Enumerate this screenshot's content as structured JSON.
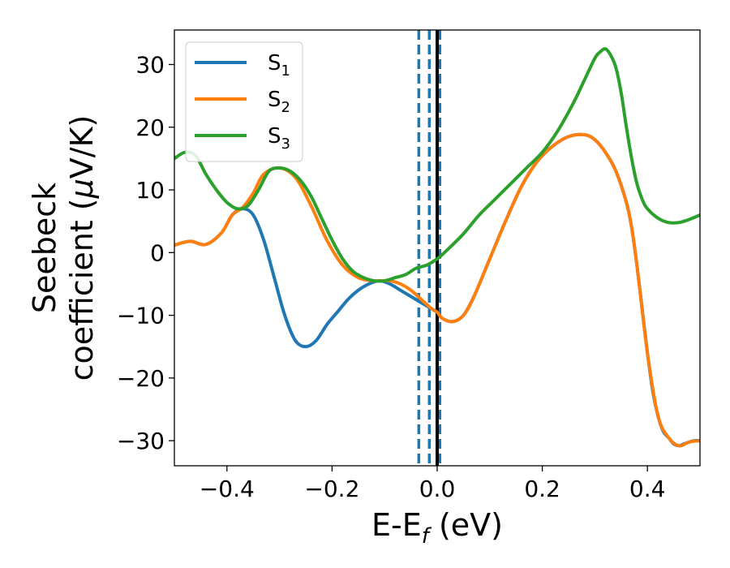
{
  "chart_data": {
    "type": "line",
    "xlabel": {
      "main": "E-E",
      "sub": "f",
      "unit": " (eV)"
    },
    "ylabel": {
      "line1": "Seebeck",
      "line2_prefix": "coefficient  (",
      "line2_mu": "μ",
      "line2_suffix": "V/K)"
    },
    "xlim": [
      -0.5,
      0.5
    ],
    "ylim": [
      -34,
      35.5
    ],
    "xticks": [
      -0.4,
      -0.2,
      0.0,
      0.2,
      0.4
    ],
    "xtick_labels": [
      "−0.4",
      "−0.2",
      "0.0",
      "0.2",
      "0.4"
    ],
    "yticks": [
      -30,
      -20,
      -10,
      0,
      10,
      20,
      30
    ],
    "ytick_labels": [
      "−30",
      "−20",
      "−10",
      "0",
      "10",
      "20",
      "30"
    ],
    "grid": false,
    "legend_position": "top-left",
    "vlines": [
      {
        "x": -0.035,
        "style": "dashed",
        "color": "#1f77b4"
      },
      {
        "x": -0.015,
        "style": "dashed",
        "color": "#1f77b4"
      },
      {
        "x": 0.005,
        "style": "dashed",
        "color": "#1f77b4"
      },
      {
        "x": 0.0,
        "style": "solid",
        "color": "#000000"
      }
    ],
    "series": [
      {
        "name": "S",
        "sub": "1",
        "color": "#1f77b4",
        "x": [
          -0.5,
          -0.47,
          -0.44,
          -0.41,
          -0.39,
          -0.37,
          -0.35,
          -0.33,
          -0.31,
          -0.29,
          -0.27,
          -0.25,
          -0.23,
          -0.21,
          -0.19,
          -0.17,
          -0.15,
          -0.13,
          -0.11,
          -0.09,
          -0.07,
          -0.05,
          -0.03,
          -0.01,
          0.0,
          0.01,
          0.03,
          0.05,
          0.07,
          0.1,
          0.13,
          0.16,
          0.19,
          0.22,
          0.25,
          0.28,
          0.3,
          0.32,
          0.34,
          0.36,
          0.37,
          0.38,
          0.39,
          0.4,
          0.41,
          0.42,
          0.43,
          0.44,
          0.45,
          0.46,
          0.47,
          0.48,
          0.49,
          0.5
        ],
        "y": [
          1.2,
          1.8,
          1.3,
          3.2,
          6.0,
          7.0,
          6.0,
          2.0,
          -4.0,
          -10.0,
          -14.0,
          -15.0,
          -14.0,
          -11.5,
          -9.5,
          -7.5,
          -6.0,
          -5.0,
          -4.5,
          -5.0,
          -6.0,
          -7.0,
          -8.0,
          -9.0,
          -9.5,
          -10.5,
          -11.0,
          -10.0,
          -7.0,
          -1.0,
          5.0,
          10.5,
          14.5,
          17.0,
          18.5,
          18.8,
          18.0,
          16.0,
          13.0,
          8.0,
          4.0,
          -2.0,
          -9.0,
          -16.0,
          -22.0,
          -26.0,
          -28.5,
          -29.5,
          -30.5,
          -30.8,
          -30.5,
          -30.2,
          -30.0,
          -30.0
        ]
      },
      {
        "name": "S",
        "sub": "2",
        "color": "#ff7f0e",
        "x": [
          -0.5,
          -0.47,
          -0.44,
          -0.41,
          -0.39,
          -0.37,
          -0.35,
          -0.33,
          -0.3,
          -0.27,
          -0.24,
          -0.21,
          -0.18,
          -0.15,
          -0.12,
          -0.09,
          -0.07,
          -0.05,
          -0.03,
          -0.01,
          0.0,
          0.01,
          0.03,
          0.05,
          0.07,
          0.1,
          0.13,
          0.16,
          0.19,
          0.22,
          0.25,
          0.28,
          0.3,
          0.32,
          0.34,
          0.36,
          0.37,
          0.38,
          0.4,
          0.42,
          0.44,
          0.46,
          0.48,
          0.5
        ],
        "y": [
          1.2,
          1.8,
          1.3,
          3.2,
          6.0,
          7.2,
          9.5,
          12.5,
          13.5,
          12.0,
          7.5,
          2.0,
          -2.0,
          -4.0,
          -4.5,
          -4.5,
          -5.0,
          -6.0,
          -7.5,
          -9.0,
          -9.5,
          -10.5,
          -11.0,
          -10.0,
          -7.0,
          -1.0,
          5.0,
          10.5,
          14.5,
          17.0,
          18.5,
          18.8,
          18.0,
          16.0,
          13.0,
          8.0,
          4.0,
          -2.0,
          -16.0,
          -26.0,
          -29.5,
          -30.8,
          -30.2,
          -30.0
        ]
      },
      {
        "name": "S",
        "sub": "3",
        "color": "#2ca02c",
        "x": [
          -0.5,
          -0.48,
          -0.46,
          -0.44,
          -0.42,
          -0.4,
          -0.38,
          -0.36,
          -0.34,
          -0.32,
          -0.3,
          -0.28,
          -0.26,
          -0.24,
          -0.22,
          -0.2,
          -0.18,
          -0.16,
          -0.14,
          -0.12,
          -0.1,
          -0.08,
          -0.06,
          -0.04,
          -0.02,
          0.0,
          0.02,
          0.05,
          0.08,
          0.11,
          0.14,
          0.17,
          0.2,
          0.23,
          0.26,
          0.28,
          0.3,
          0.31,
          0.32,
          0.33,
          0.34,
          0.35,
          0.36,
          0.37,
          0.38,
          0.39,
          0.4,
          0.42,
          0.44,
          0.46,
          0.48,
          0.5
        ],
        "y": [
          15.0,
          16.0,
          15.5,
          12.5,
          10.0,
          8.0,
          7.0,
          7.5,
          10.0,
          13.0,
          13.5,
          13.0,
          11.5,
          9.0,
          5.5,
          2.0,
          -1.0,
          -3.0,
          -4.0,
          -4.5,
          -4.5,
          -4.0,
          -3.5,
          -2.5,
          -2.0,
          -1.0,
          0.5,
          3.0,
          6.0,
          8.5,
          11.0,
          13.5,
          16.0,
          19.5,
          24.0,
          27.5,
          31.0,
          32.0,
          32.5,
          31.5,
          29.5,
          25.5,
          20.0,
          15.0,
          11.0,
          8.5,
          7.0,
          5.5,
          4.8,
          4.8,
          5.3,
          6.0
        ]
      }
    ]
  }
}
